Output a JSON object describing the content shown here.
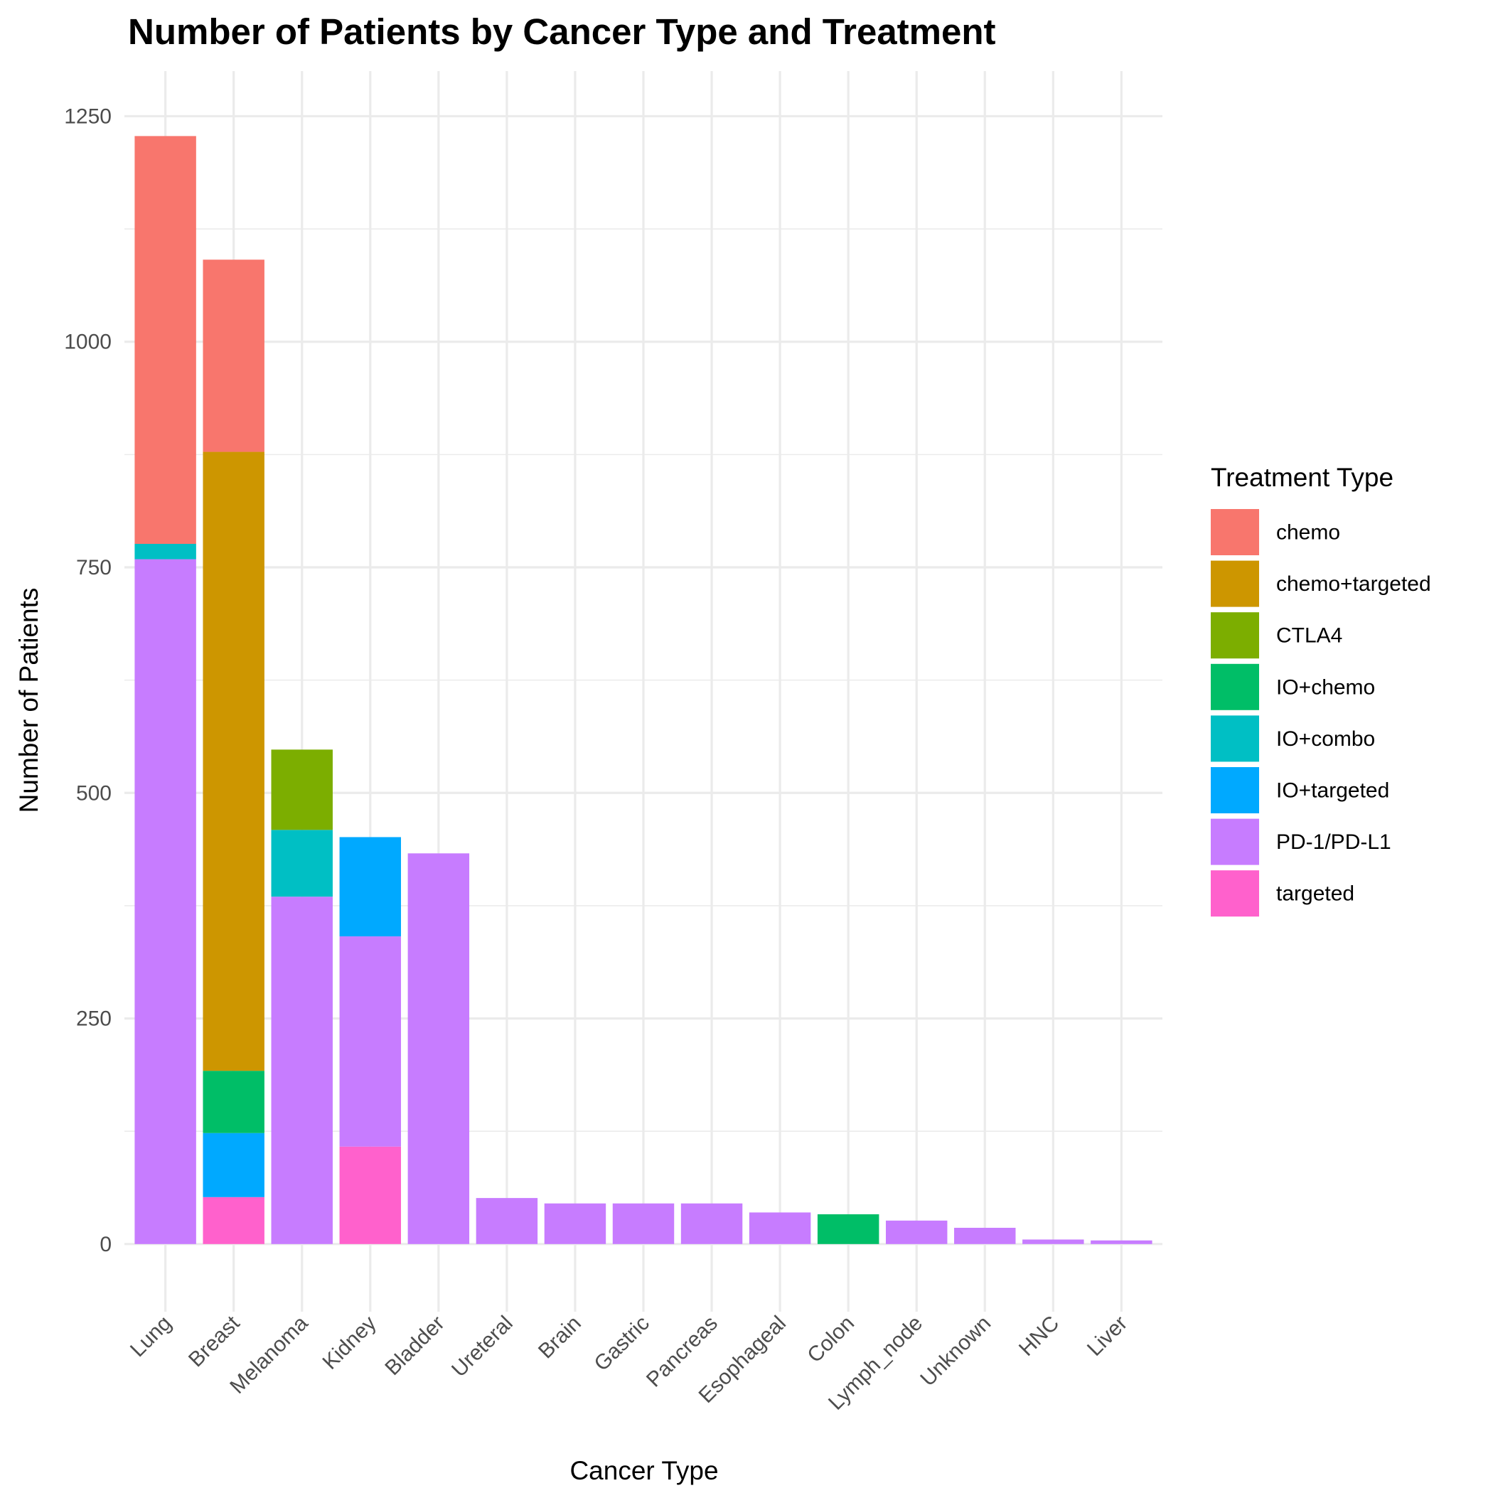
{
  "chart_data": {
    "type": "bar",
    "stacked": true,
    "title": "Number of Patients by Cancer Type and Treatment",
    "xlabel": "Cancer Type",
    "ylabel": "Number of Patients",
    "ylim": [
      -75,
      1300
    ],
    "yticks": [
      0,
      250,
      500,
      750,
      1000,
      1250
    ],
    "grid": true,
    "legend_title": "Treatment Type",
    "legend_position": "right",
    "categories": [
      "Lung",
      "Breast",
      "Melanoma",
      "Kidney",
      "Bladder",
      "Ureteral",
      "Brain",
      "Gastric",
      "Pancreas",
      "Esophageal",
      "Colon",
      "Lymph_node",
      "Unknown",
      "HNC",
      "Liver"
    ],
    "series": [
      {
        "name": "chemo",
        "color": "#F8766D",
        "values": [
          452,
          213,
          0,
          0,
          0,
          0,
          0,
          0,
          0,
          0,
          0,
          0,
          0,
          0,
          0
        ]
      },
      {
        "name": "chemo+targeted",
        "color": "#CD9600",
        "values": [
          0,
          686,
          0,
          0,
          0,
          0,
          0,
          0,
          0,
          0,
          0,
          0,
          0,
          0,
          0
        ]
      },
      {
        "name": "CTLA4",
        "color": "#7CAE00",
        "values": [
          0,
          0,
          89,
          0,
          0,
          0,
          0,
          0,
          0,
          0,
          0,
          0,
          0,
          0,
          0
        ]
      },
      {
        "name": "IO+chemo",
        "color": "#00BE67",
        "values": [
          0,
          69,
          0,
          0,
          0,
          0,
          0,
          0,
          0,
          0,
          33,
          0,
          0,
          0,
          0
        ]
      },
      {
        "name": "IO+combo",
        "color": "#00BFC4",
        "values": [
          17,
          0,
          74,
          0,
          0,
          0,
          0,
          0,
          0,
          0,
          0,
          0,
          0,
          0,
          0
        ]
      },
      {
        "name": "IO+targeted",
        "color": "#00A9FF",
        "values": [
          0,
          71,
          0,
          110,
          0,
          0,
          0,
          0,
          0,
          0,
          0,
          0,
          0,
          0,
          0
        ]
      },
      {
        "name": "PD-1/PD-L1",
        "color": "#C77CFF",
        "values": [
          759,
          0,
          385,
          233,
          433,
          51,
          45,
          45,
          45,
          35,
          0,
          26,
          18,
          5,
          4
        ]
      },
      {
        "name": "targeted",
        "color": "#FF61CC",
        "values": [
          0,
          52,
          0,
          108,
          0,
          0,
          0,
          0,
          0,
          0,
          0,
          0,
          0,
          0,
          0
        ]
      }
    ]
  }
}
